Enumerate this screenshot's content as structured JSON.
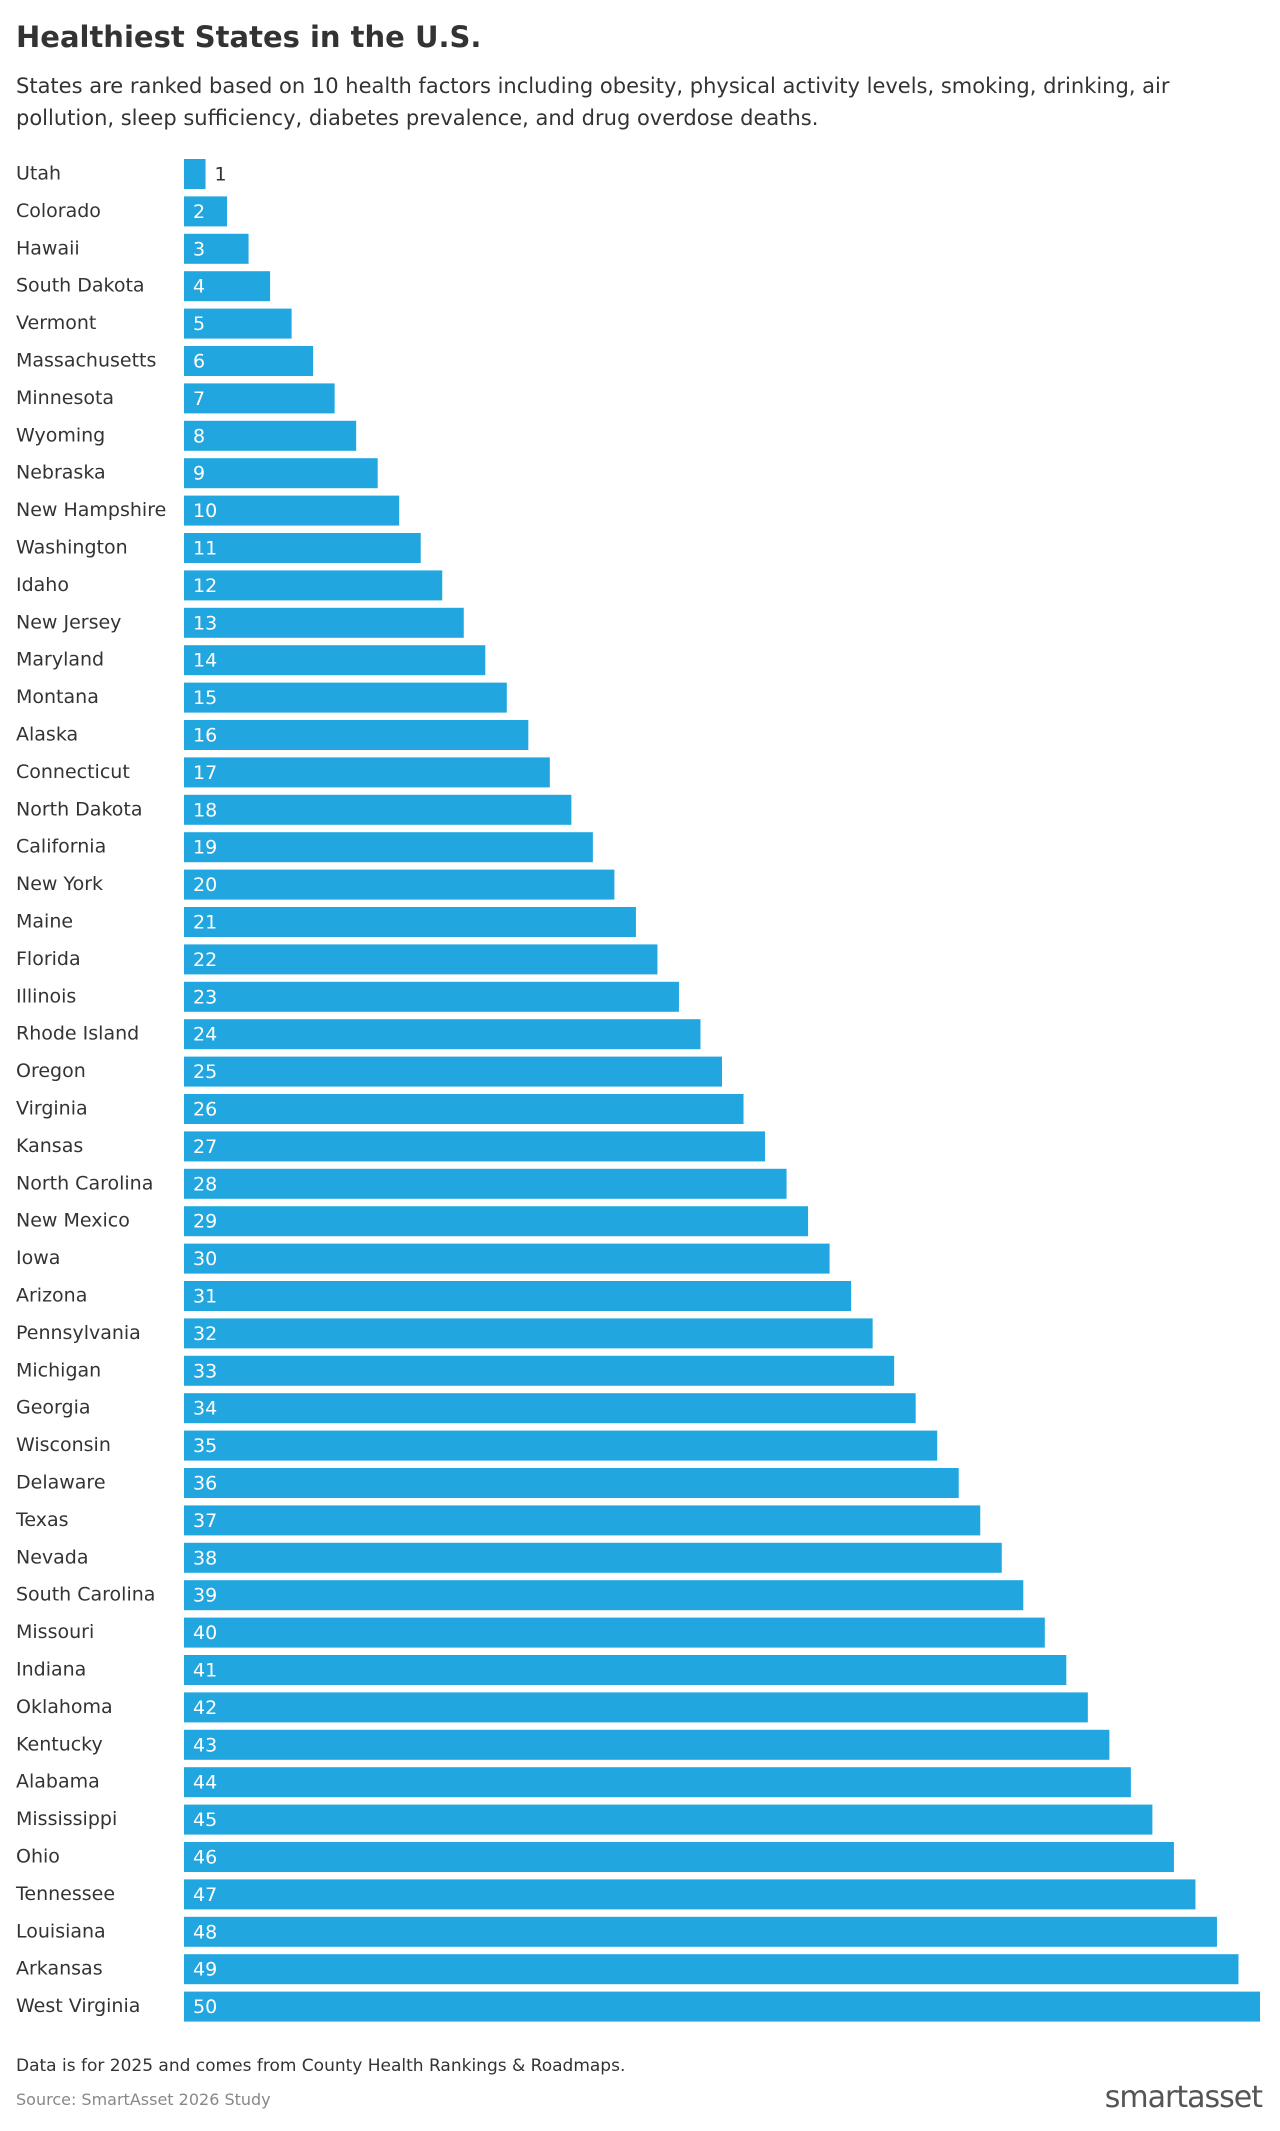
{
  "chart_data": {
    "type": "bar",
    "orientation": "horizontal",
    "title": "Healthiest States in the U.S.",
    "subtitle": "States are ranked based on 10 health factors including obesity, physical activity levels, smoking, drinking, air pollution, sleep sufficiency, diabetes prevalence, and drug overdose deaths.",
    "categories": [
      "Utah",
      "Colorado",
      "Hawaii",
      "South Dakota",
      "Vermont",
      "Massachusetts",
      "Minnesota",
      "Wyoming",
      "Nebraska",
      "New Hampshire",
      "Washington",
      "Idaho",
      "New Jersey",
      "Maryland",
      "Montana",
      "Alaska",
      "Connecticut",
      "North Dakota",
      "California",
      "New York",
      "Maine",
      "Florida",
      "Illinois",
      "Rhode Island",
      "Oregon",
      "Virginia",
      "Kansas",
      "North Carolina",
      "New Mexico",
      "Iowa",
      "Arizona",
      "Pennsylvania",
      "Michigan",
      "Georgia",
      "Wisconsin",
      "Delaware",
      "Texas",
      "Nevada",
      "South Carolina",
      "Missouri",
      "Indiana",
      "Oklahoma",
      "Kentucky",
      "Alabama",
      "Mississippi",
      "Ohio",
      "Tennessee",
      "Louisiana",
      "Arkansas",
      "West Virginia"
    ],
    "values": [
      1,
      2,
      3,
      4,
      5,
      6,
      7,
      8,
      9,
      10,
      11,
      12,
      13,
      14,
      15,
      16,
      17,
      18,
      19,
      20,
      21,
      22,
      23,
      24,
      25,
      26,
      27,
      28,
      29,
      30,
      31,
      32,
      33,
      34,
      35,
      36,
      37,
      38,
      39,
      40,
      41,
      42,
      43,
      44,
      45,
      46,
      47,
      48,
      49,
      50
    ],
    "color": "#21a6e0",
    "xlim": [
      0,
      50
    ],
    "note": "Data is for 2025 and comes from County Health Rankings & Roadmaps.",
    "source": "Source: SmartAsset 2026 Study",
    "logo": "smartasset"
  }
}
